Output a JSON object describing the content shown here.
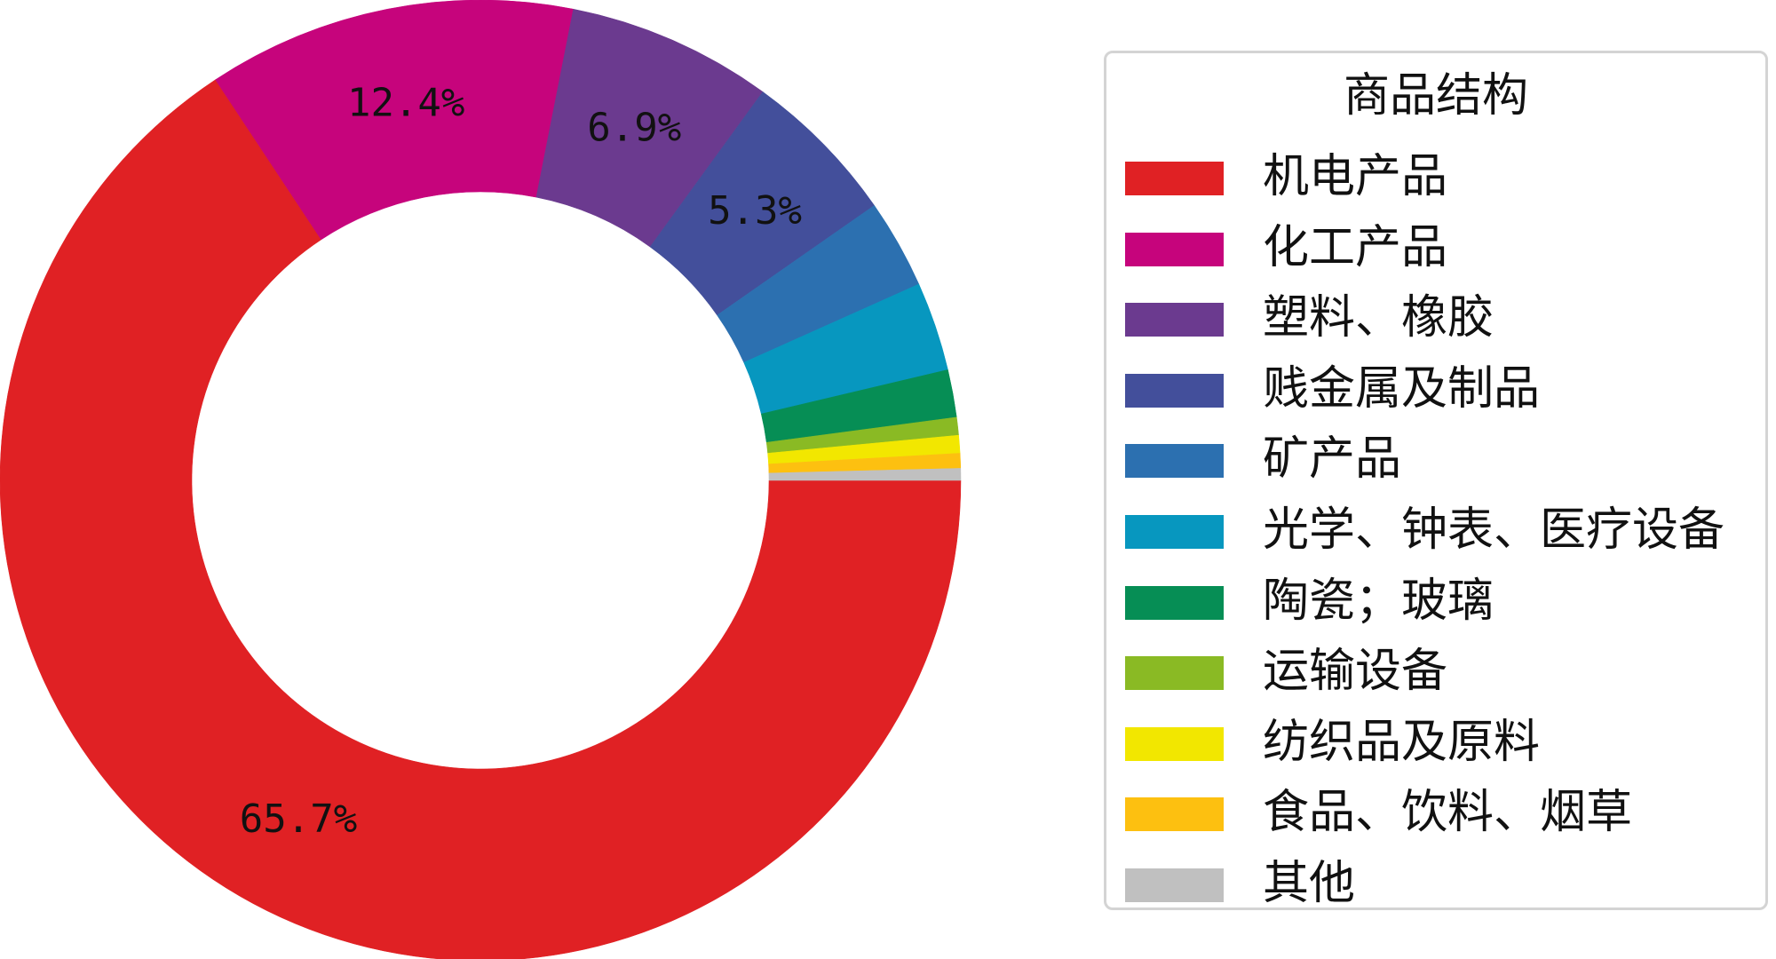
{
  "chart_data": {
    "type": "pie",
    "variant": "donut",
    "legend": {
      "title": "商品结构",
      "placement": "right"
    },
    "slices": [
      {
        "label": "机电产品",
        "value": 65.7,
        "color": "#e02124",
        "label_text": "65.7%"
      },
      {
        "label": "化工产品",
        "value": 12.4,
        "color": "#c6047c",
        "label_text": "12.4%"
      },
      {
        "label": "塑料、橡胶",
        "value": 6.9,
        "color": "#6b3a8f",
        "label_text": "6.9%"
      },
      {
        "label": "贱金属及制品",
        "value": 5.3,
        "color": "#434f9b",
        "label_text": "5.3%"
      },
      {
        "label": "矿产品",
        "value": 3.0,
        "color": "#2c70b0",
        "label_text": ""
      },
      {
        "label": "光学、钟表、医疗设备",
        "value": 3.0,
        "color": "#0797bf",
        "label_text": ""
      },
      {
        "label": "陶瓷；玻璃",
        "value": 1.6,
        "color": "#068e55",
        "label_text": ""
      },
      {
        "label": "运输设备",
        "value": 0.6,
        "color": "#8aba24",
        "label_text": ""
      },
      {
        "label": "纺织品及原料",
        "value": 0.6,
        "color": "#f2e700",
        "label_text": ""
      },
      {
        "label": "食品、饮料、烟草",
        "value": 0.5,
        "color": "#fdc010",
        "label_text": ""
      },
      {
        "label": "其他",
        "value": 0.4,
        "color": "#c0c0c0",
        "label_text": ""
      }
    ]
  }
}
